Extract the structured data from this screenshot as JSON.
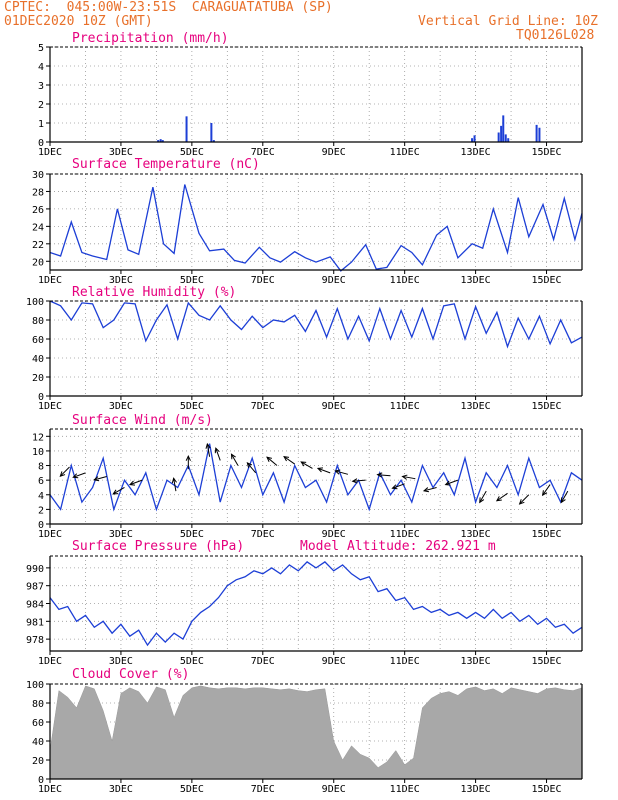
{
  "header": {
    "line1": "CPTEC:  045:00W-23:51S  CARAGUATATUBA (SP)",
    "line2": "01DEC2020 10Z (GMT)",
    "vgrid": "Vertical Grid Line: 10Z",
    "code": "TQ0126L028"
  },
  "colors": {
    "header": "#e8702a",
    "panel_title": "#e6007e",
    "line": "#1d3fd6",
    "cloud": "#a8a8a8"
  },
  "chart_data": [
    {
      "type": "bar",
      "title": "Precipitation (mm/h)",
      "ylim": [
        0,
        5
      ],
      "yticks": [
        0,
        1,
        2,
        3,
        4,
        5
      ],
      "xticks": [
        "1DEC",
        "3DEC",
        "5DEC",
        "7DEC",
        "9DEC",
        "11DEC",
        "13DEC",
        "15DEC"
      ],
      "x_unit": "day of December 2020",
      "bars": [
        {
          "day": 4.05,
          "value": 0.1
        },
        {
          "day": 4.12,
          "value": 0.15
        },
        {
          "day": 4.18,
          "value": 0.1
        },
        {
          "day": 4.85,
          "value": 1.35
        },
        {
          "day": 5.55,
          "value": 1.0
        },
        {
          "day": 5.62,
          "value": 0.1
        },
        {
          "day": 12.9,
          "value": 0.2
        },
        {
          "day": 12.97,
          "value": 0.35
        },
        {
          "day": 13.65,
          "value": 0.5
        },
        {
          "day": 13.72,
          "value": 0.85
        },
        {
          "day": 13.78,
          "value": 1.4
        },
        {
          "day": 13.85,
          "value": 0.4
        },
        {
          "day": 13.92,
          "value": 0.2
        },
        {
          "day": 14.72,
          "value": 0.9
        },
        {
          "day": 14.8,
          "value": 0.75
        }
      ]
    },
    {
      "type": "line",
      "title": "Surface Temperature (nC)",
      "ylim": [
        19,
        30
      ],
      "yticks": [
        20,
        22,
        24,
        26,
        28,
        30
      ],
      "xticks": [
        "1DEC",
        "3DEC",
        "5DEC",
        "7DEC",
        "9DEC",
        "11DEC",
        "13DEC",
        "15DEC"
      ],
      "x": [
        1.0,
        1.3,
        1.6,
        1.9,
        2.2,
        2.6,
        2.9,
        3.2,
        3.5,
        3.9,
        4.2,
        4.5,
        4.8,
        5.2,
        5.5,
        5.9,
        6.2,
        6.5,
        6.9,
        7.2,
        7.5,
        7.9,
        8.2,
        8.5,
        8.9,
        9.2,
        9.5,
        9.9,
        10.2,
        10.5,
        10.9,
        11.2,
        11.5,
        11.9,
        12.2,
        12.5,
        12.9,
        13.2,
        13.5,
        13.9,
        14.2,
        14.5,
        14.9,
        15.2,
        15.5,
        15.8,
        16.0
      ],
      "y": [
        21.0,
        20.6,
        24.5,
        21.0,
        20.6,
        20.2,
        26.0,
        21.3,
        20.8,
        28.5,
        22.0,
        20.9,
        28.8,
        23.2,
        21.2,
        21.4,
        20.1,
        19.8,
        21.6,
        20.4,
        19.9,
        21.1,
        20.4,
        19.9,
        20.5,
        18.9,
        19.9,
        21.9,
        19.1,
        19.3,
        21.8,
        21.0,
        19.6,
        23.0,
        24.0,
        20.4,
        22.0,
        21.5,
        26.0,
        21.0,
        27.3,
        22.8,
        26.5,
        22.5,
        27.2,
        22.5,
        25.5
      ]
    },
    {
      "type": "line",
      "title": "Relative Humidity (%)",
      "ylim": [
        0,
        100
      ],
      "yticks": [
        0,
        20,
        40,
        60,
        80,
        100
      ],
      "xticks": [
        "1DEC",
        "3DEC",
        "5DEC",
        "7DEC",
        "9DEC",
        "11DEC",
        "13DEC",
        "15DEC"
      ],
      "x": [
        1.0,
        1.3,
        1.6,
        1.9,
        2.2,
        2.5,
        2.8,
        3.1,
        3.4,
        3.7,
        4.0,
        4.3,
        4.6,
        4.9,
        5.2,
        5.5,
        5.8,
        6.1,
        6.4,
        6.7,
        7.0,
        7.3,
        7.6,
        7.9,
        8.2,
        8.5,
        8.8,
        9.1,
        9.4,
        9.7,
        10.0,
        10.3,
        10.6,
        10.9,
        11.2,
        11.5,
        11.8,
        12.1,
        12.4,
        12.7,
        13.0,
        13.3,
        13.6,
        13.9,
        14.2,
        14.5,
        14.8,
        15.1,
        15.4,
        15.7,
        16.0
      ],
      "y": [
        100,
        95,
        80,
        98,
        97,
        72,
        80,
        98,
        97,
        58,
        80,
        96,
        60,
        98,
        85,
        80,
        95,
        80,
        70,
        84,
        72,
        80,
        78,
        85,
        68,
        90,
        62,
        92,
        60,
        84,
        58,
        92,
        60,
        90,
        62,
        92,
        60,
        95,
        97,
        60,
        94,
        66,
        88,
        52,
        82,
        60,
        84,
        55,
        80,
        56,
        62
      ]
    },
    {
      "type": "line",
      "title": "Surface Wind (m/s)",
      "ylim": [
        0,
        13
      ],
      "yticks": [
        0,
        2,
        4,
        6,
        8,
        10,
        12
      ],
      "xticks": [
        "1DEC",
        "3DEC",
        "5DEC",
        "7DEC",
        "9DEC",
        "11DEC",
        "13DEC",
        "15DEC"
      ],
      "x": [
        1.0,
        1.3,
        1.6,
        1.9,
        2.2,
        2.5,
        2.8,
        3.1,
        3.4,
        3.7,
        4.0,
        4.3,
        4.6,
        4.9,
        5.2,
        5.5,
        5.8,
        6.1,
        6.4,
        6.7,
        7.0,
        7.3,
        7.6,
        7.9,
        8.2,
        8.5,
        8.8,
        9.1,
        9.4,
        9.7,
        10.0,
        10.3,
        10.6,
        10.9,
        11.2,
        11.5,
        11.8,
        12.1,
        12.4,
        12.7,
        13.0,
        13.3,
        13.6,
        13.9,
        14.2,
        14.5,
        14.8,
        15.1,
        15.4,
        15.7,
        16.0
      ],
      "y": [
        4,
        2,
        8,
        3,
        5,
        9,
        2,
        6,
        4,
        7,
        2,
        6,
        5,
        8,
        4,
        11,
        3,
        8,
        5,
        9,
        4,
        7,
        3,
        8,
        5,
        6,
        3,
        8,
        4,
        6,
        2,
        7,
        4,
        6,
        3,
        8,
        5,
        7,
        4,
        9,
        3,
        7,
        5,
        8,
        4,
        9,
        5,
        6,
        3,
        7,
        6
      ],
      "vectors": [
        {
          "day": 1.55,
          "value": 7.8,
          "angle_deg": 225
        },
        {
          "day": 2.0,
          "value": 7.0,
          "angle_deg": 200
        },
        {
          "day": 2.6,
          "value": 6.5,
          "angle_deg": 195
        },
        {
          "day": 3.1,
          "value": 5.0,
          "angle_deg": 210
        },
        {
          "day": 3.6,
          "value": 6.0,
          "angle_deg": 200
        },
        {
          "day": 4.55,
          "value": 4.5,
          "angle_deg": 100
        },
        {
          "day": 4.9,
          "value": 7.5,
          "angle_deg": 90
        },
        {
          "day": 5.5,
          "value": 9.2,
          "angle_deg": 100
        },
        {
          "day": 5.8,
          "value": 8.7,
          "angle_deg": 110
        },
        {
          "day": 6.3,
          "value": 8.0,
          "angle_deg": 120
        },
        {
          "day": 6.8,
          "value": 7.0,
          "angle_deg": 130
        },
        {
          "day": 7.4,
          "value": 8.0,
          "angle_deg": 140
        },
        {
          "day": 7.9,
          "value": 8.2,
          "angle_deg": 145
        },
        {
          "day": 8.4,
          "value": 7.6,
          "angle_deg": 150
        },
        {
          "day": 8.9,
          "value": 7.0,
          "angle_deg": 160
        },
        {
          "day": 9.4,
          "value": 6.8,
          "angle_deg": 165
        },
        {
          "day": 9.9,
          "value": 6.0,
          "angle_deg": 185
        },
        {
          "day": 10.6,
          "value": 6.6,
          "angle_deg": 175
        },
        {
          "day": 11.0,
          "value": 5.5,
          "angle_deg": 200
        },
        {
          "day": 11.3,
          "value": 6.2,
          "angle_deg": 170
        },
        {
          "day": 11.9,
          "value": 5.0,
          "angle_deg": 195
        },
        {
          "day": 12.5,
          "value": 6.0,
          "angle_deg": 200
        },
        {
          "day": 13.3,
          "value": 4.5,
          "angle_deg": 240
        },
        {
          "day": 13.9,
          "value": 4.2,
          "angle_deg": 215
        },
        {
          "day": 14.5,
          "value": 4.0,
          "angle_deg": 225
        },
        {
          "day": 15.1,
          "value": 5.4,
          "angle_deg": 235
        },
        {
          "day": 15.6,
          "value": 4.5,
          "angle_deg": 240
        }
      ]
    },
    {
      "type": "line",
      "title": "Surface Pressure (hPa)",
      "annotation": "Model Altitude: 262.921 m",
      "ylim": [
        976,
        992
      ],
      "yticks": [
        978,
        981,
        984,
        987,
        990
      ],
      "xticks": [
        "1DEC",
        "3DEC",
        "5DEC",
        "7DEC",
        "9DEC",
        "11DEC",
        "13DEC",
        "15DEC"
      ],
      "x": [
        1.0,
        1.25,
        1.5,
        1.75,
        2.0,
        2.25,
        2.5,
        2.75,
        3.0,
        3.25,
        3.5,
        3.75,
        4.0,
        4.25,
        4.5,
        4.75,
        5.0,
        5.25,
        5.5,
        5.75,
        6.0,
        6.25,
        6.5,
        6.75,
        7.0,
        7.25,
        7.5,
        7.75,
        8.0,
        8.25,
        8.5,
        8.75,
        9.0,
        9.25,
        9.5,
        9.75,
        10.0,
        10.25,
        10.5,
        10.75,
        11.0,
        11.25,
        11.5,
        11.75,
        12.0,
        12.25,
        12.5,
        12.75,
        13.0,
        13.25,
        13.5,
        13.75,
        14.0,
        14.25,
        14.5,
        14.75,
        15.0,
        15.25,
        15.5,
        15.75,
        16.0
      ],
      "y": [
        985,
        983,
        983.5,
        981,
        982,
        980,
        981,
        979,
        980.5,
        978.5,
        979.5,
        977,
        979,
        977.5,
        979,
        978,
        981,
        982.5,
        983.5,
        985,
        987,
        988,
        988.5,
        989.5,
        989,
        990,
        989,
        990.5,
        989.5,
        991,
        990,
        991,
        989.5,
        990.5,
        989,
        988,
        988.5,
        986,
        986.5,
        984.5,
        985,
        983,
        983.5,
        982.5,
        983,
        982,
        982.5,
        981.5,
        982.5,
        981.5,
        983,
        981.5,
        982.5,
        981,
        982,
        980.5,
        981.5,
        980,
        980.5,
        979,
        980
      ]
    },
    {
      "type": "area",
      "title": "Cloud Cover (%)",
      "ylim": [
        0,
        100
      ],
      "yticks": [
        0,
        20,
        40,
        60,
        80,
        100
      ],
      "xticks": [
        "1DEC",
        "3DEC",
        "5DEC",
        "7DEC",
        "9DEC",
        "11DEC",
        "13DEC",
        "15DEC"
      ],
      "x": [
        1.0,
        1.25,
        1.5,
        1.75,
        2.0,
        2.25,
        2.5,
        2.75,
        3.0,
        3.25,
        3.5,
        3.75,
        4.0,
        4.25,
        4.5,
        4.75,
        5.0,
        5.25,
        5.5,
        5.75,
        6.0,
        6.25,
        6.5,
        6.75,
        7.0,
        7.25,
        7.5,
        7.75,
        8.0,
        8.25,
        8.5,
        8.75,
        9.0,
        9.25,
        9.5,
        9.75,
        10.0,
        10.25,
        10.5,
        10.75,
        11.0,
        11.25,
        11.5,
        11.75,
        12.0,
        12.25,
        12.5,
        12.75,
        13.0,
        13.25,
        13.5,
        13.75,
        14.0,
        14.25,
        14.5,
        14.75,
        15.0,
        15.25,
        15.5,
        15.75,
        16.0
      ],
      "y": [
        30,
        93,
        86,
        75,
        98,
        95,
        72,
        40,
        90,
        96,
        92,
        80,
        97,
        94,
        65,
        88,
        96,
        98,
        96,
        95,
        96,
        96,
        95,
        96,
        96,
        95,
        94,
        95,
        93,
        92,
        94,
        95,
        40,
        20,
        35,
        26,
        22,
        12,
        18,
        30,
        15,
        22,
        75,
        85,
        90,
        92,
        88,
        95,
        97,
        93,
        95,
        90,
        96,
        94,
        92,
        90,
        95,
        96,
        94,
        93,
        96
      ]
    }
  ]
}
